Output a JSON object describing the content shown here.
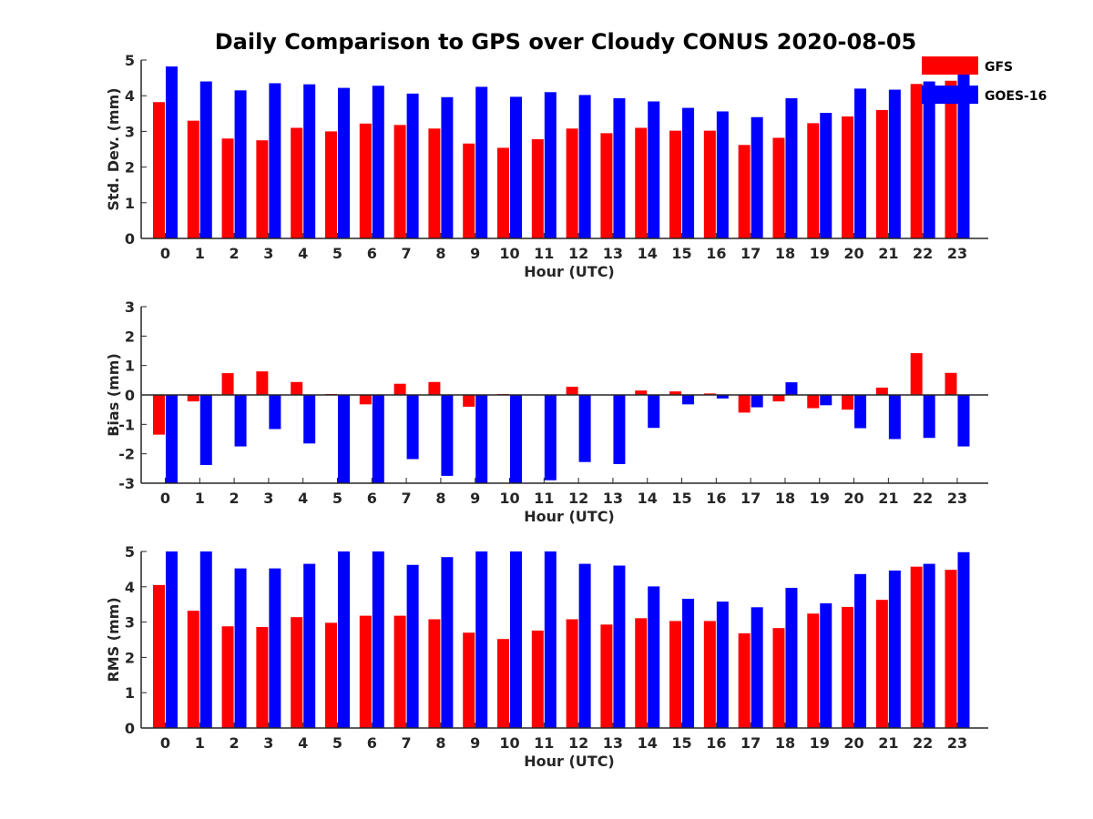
{
  "chart_data": [
    {
      "type": "bar",
      "title": "Daily Comparison to GPS over Cloudy CONUS 2020-08-05",
      "xlabel": "Hour (UTC)",
      "ylabel": "Std. Dev. (mm)",
      "ylim": [
        0,
        5
      ],
      "yticks": [
        0,
        1,
        2,
        3,
        4,
        5
      ],
      "categories": [
        "0",
        "1",
        "2",
        "3",
        "4",
        "5",
        "6",
        "7",
        "8",
        "9",
        "10",
        "11",
        "12",
        "13",
        "14",
        "15",
        "16",
        "17",
        "18",
        "19",
        "20",
        "21",
        "22",
        "23"
      ],
      "series": [
        {
          "name": "GFS",
          "color": "#ff0000",
          "values": [
            3.82,
            3.3,
            2.8,
            2.75,
            3.1,
            3.0,
            3.22,
            3.18,
            3.08,
            2.66,
            2.54,
            2.78,
            3.08,
            2.95,
            3.1,
            3.02,
            3.02,
            2.62,
            2.82,
            3.23,
            3.42,
            3.6,
            4.33,
            4.42
          ]
        },
        {
          "name": "GOES-16",
          "color": "#0000ff",
          "values": [
            4.82,
            4.4,
            4.15,
            4.35,
            4.32,
            4.22,
            4.28,
            4.06,
            3.96,
            4.25,
            3.97,
            4.1,
            4.02,
            3.93,
            3.84,
            3.66,
            3.56,
            3.4,
            3.93,
            3.52,
            4.2,
            4.17,
            4.4,
            4.9
          ]
        }
      ],
      "legend": {
        "position": "top-right",
        "entries": [
          "GFS",
          "GOES-16"
        ]
      }
    },
    {
      "type": "bar",
      "xlabel": "Hour (UTC)",
      "ylabel": "Bias (mm)",
      "ylim": [
        -3,
        3
      ],
      "yticks": [
        -3,
        -2,
        -1,
        0,
        1,
        2,
        3
      ],
      "baseline": 0,
      "categories": [
        "0",
        "1",
        "2",
        "3",
        "4",
        "5",
        "6",
        "7",
        "8",
        "9",
        "10",
        "11",
        "12",
        "13",
        "14",
        "15",
        "16",
        "17",
        "18",
        "19",
        "20",
        "21",
        "22",
        "23"
      ],
      "series": [
        {
          "name": "GFS",
          "color": "#ff0000",
          "values": [
            -1.35,
            -0.22,
            0.74,
            0.8,
            0.44,
            0.03,
            -0.32,
            0.38,
            0.44,
            -0.4,
            0.03,
            0.0,
            0.28,
            0.0,
            0.15,
            0.12,
            0.05,
            -0.6,
            -0.22,
            -0.45,
            -0.5,
            0.25,
            1.42,
            0.75
          ]
        },
        {
          "name": "GOES-16",
          "color": "#0000ff",
          "values": [
            -3.0,
            -2.38,
            -1.75,
            -1.16,
            -1.65,
            -3.0,
            -3.0,
            -2.18,
            -2.75,
            -3.0,
            -3.0,
            -2.9,
            -2.28,
            -2.35,
            -1.12,
            -0.32,
            -0.12,
            -0.42,
            0.43,
            -0.35,
            -1.13,
            -1.5,
            -1.46,
            -1.75
          ]
        }
      ]
    },
    {
      "type": "bar",
      "xlabel": "Hour (UTC)",
      "ylabel": "RMS (mm)",
      "ylim": [
        0,
        5
      ],
      "yticks": [
        0,
        1,
        2,
        3,
        4,
        5
      ],
      "categories": [
        "0",
        "1",
        "2",
        "3",
        "4",
        "5",
        "6",
        "7",
        "8",
        "9",
        "10",
        "11",
        "12",
        "13",
        "14",
        "15",
        "16",
        "17",
        "18",
        "19",
        "20",
        "21",
        "22",
        "23"
      ],
      "series": [
        {
          "name": "GFS",
          "color": "#ff0000",
          "values": [
            4.05,
            3.32,
            2.88,
            2.86,
            3.14,
            2.98,
            3.18,
            3.18,
            3.08,
            2.7,
            2.52,
            2.76,
            3.08,
            2.93,
            3.11,
            3.03,
            3.03,
            2.68,
            2.83,
            3.24,
            3.43,
            3.63,
            4.57,
            4.48
          ]
        },
        {
          "name": "GOES-16",
          "color": "#0000ff",
          "values": [
            5.0,
            5.0,
            4.52,
            4.52,
            4.65,
            5.0,
            5.0,
            4.62,
            4.84,
            5.0,
            5.0,
            5.0,
            4.65,
            4.6,
            4.01,
            3.66,
            3.58,
            3.42,
            3.97,
            3.53,
            4.36,
            4.46,
            4.65,
            4.98
          ]
        }
      ]
    }
  ]
}
